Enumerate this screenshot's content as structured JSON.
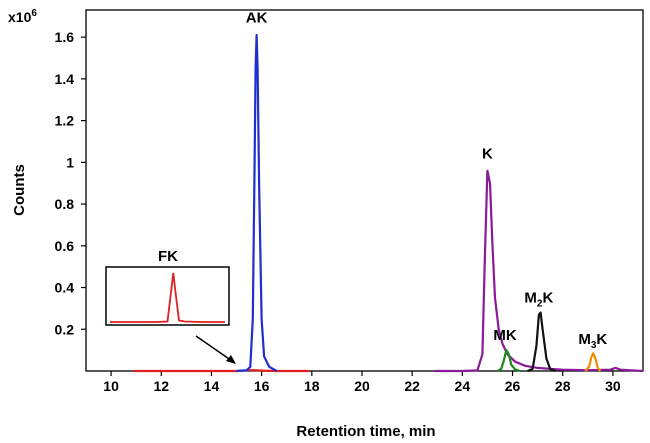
{
  "chart_data": {
    "type": "line",
    "xlabel": "Retention time, min",
    "ylabel": "Counts",
    "y_multiplier_base": "x10",
    "y_multiplier_exp": "6",
    "xlim": [
      9,
      31.2
    ],
    "ylim": [
      0,
      1.73
    ],
    "x_ticks": [
      10,
      12,
      14,
      16,
      18,
      20,
      22,
      24,
      26,
      28,
      30
    ],
    "x_tick_labels": [
      "10",
      "12",
      "14",
      "16",
      "18",
      "20",
      "22",
      "24",
      "26",
      "28",
      "30"
    ],
    "y_ticks": [
      0.2,
      0.4,
      0.6,
      0.8,
      1,
      1.2,
      1.4,
      1.6
    ],
    "y_tick_labels": [
      "0.2",
      "0.4",
      "0.6",
      "0.8",
      "1",
      "1.2",
      "1.4",
      "1.6"
    ],
    "grid": false,
    "series": [
      {
        "label": "FK",
        "color": "#e02020",
        "x": [
          10.9,
          12.0,
          13.0,
          14.0,
          15.0,
          15.5,
          15.7,
          16.0,
          16.5,
          17.0,
          17.9
        ],
        "y": [
          0.0,
          0.0,
          0.0,
          0.0,
          0.0,
          0.004,
          0.004,
          0.002,
          0.0,
          0.0,
          0.0
        ]
      },
      {
        "label": "AK",
        "color": "#1f2fd0",
        "x": [
          15.0,
          15.4,
          15.55,
          15.65,
          15.72,
          15.76,
          15.8,
          15.84,
          15.9,
          16.0,
          16.1,
          16.3,
          16.6
        ],
        "y": [
          0.0,
          0.003,
          0.02,
          0.25,
          1.0,
          1.45,
          1.61,
          1.45,
          0.9,
          0.25,
          0.07,
          0.02,
          0.0
        ]
      },
      {
        "label": "K",
        "color": "#8a1a9a",
        "x": [
          22.9,
          24.0,
          24.6,
          24.8,
          24.9,
          25.0,
          25.1,
          25.2,
          25.3,
          25.45,
          25.6,
          25.8,
          26.1,
          26.5,
          27.0,
          27.5,
          28.0,
          29.0,
          29.9,
          30.1,
          30.3,
          31.2
        ],
        "y": [
          0.0,
          0.0,
          0.003,
          0.08,
          0.55,
          0.96,
          0.9,
          0.6,
          0.35,
          0.2,
          0.13,
          0.08,
          0.045,
          0.025,
          0.015,
          0.01,
          0.006,
          0.004,
          0.006,
          0.015,
          0.006,
          0.0
        ]
      },
      {
        "label": "MK",
        "color": "#1a8a1a",
        "x": [
          25.4,
          25.55,
          25.65,
          25.75,
          25.85,
          25.95,
          26.1,
          26.3
        ],
        "y": [
          0.0,
          0.01,
          0.05,
          0.1,
          0.08,
          0.03,
          0.008,
          0.0
        ]
      },
      {
        "label": "M2K",
        "color": "#111111",
        "x": [
          26.6,
          26.8,
          26.95,
          27.05,
          27.12,
          27.2,
          27.35,
          27.5,
          27.7
        ],
        "y": [
          0.0,
          0.01,
          0.12,
          0.27,
          0.28,
          0.2,
          0.06,
          0.01,
          0.0
        ]
      },
      {
        "label": "M3K",
        "color": "#f08c00",
        "x": [
          28.9,
          29.05,
          29.15,
          29.22,
          29.3,
          29.4,
          29.5
        ],
        "y": [
          0.0,
          0.02,
          0.07,
          0.085,
          0.06,
          0.015,
          0.0
        ]
      }
    ],
    "annotations": [
      {
        "text": "AK",
        "x": 15.8,
        "y": 1.65
      },
      {
        "text": "K",
        "x": 25.0,
        "y": 1.0
      },
      {
        "text": "MK",
        "x": 25.7,
        "y": 0.13
      },
      {
        "text_main": "M",
        "text_sub": "2",
        "text_tail": "K",
        "x": 27.05,
        "y": 0.31
      },
      {
        "text_main": "M",
        "text_sub": "3",
        "text_tail": "K",
        "x": 29.2,
        "y": 0.11
      }
    ],
    "inset": {
      "label": "FK",
      "color": "#e02020",
      "x": [
        0.0,
        0.2,
        0.4,
        0.5,
        0.53,
        0.55,
        0.57,
        0.6,
        0.65,
        0.8,
        1.0
      ],
      "y": [
        0.02,
        0.02,
        0.02,
        0.03,
        0.6,
        1.0,
        0.6,
        0.05,
        0.03,
        0.02,
        0.02
      ]
    }
  }
}
